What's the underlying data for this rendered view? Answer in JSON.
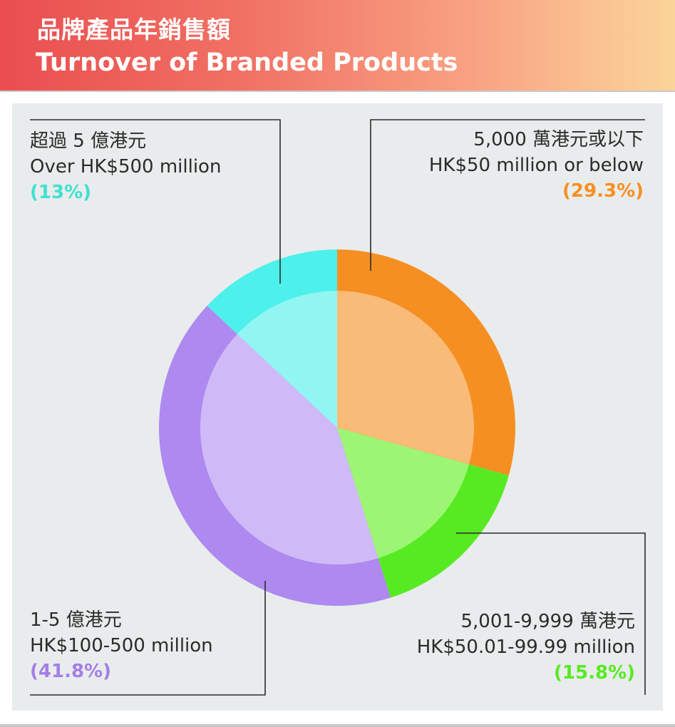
{
  "header": {
    "title_zh": "品牌產品年銷售額",
    "title_en": "Turnover of Branded Products"
  },
  "chart_data": {
    "type": "pie",
    "title": "品牌產品年銷售額 Turnover of Branded Products",
    "slices": [
      {
        "label_zh": "5,000 萬港元或以下",
        "label_en": "HK$50 million or below",
        "pct_text": "(29.3%)",
        "value": 29.3,
        "outer_color": "#f68f22",
        "inner_color": "#f8bb78",
        "text_color": "#f68f22"
      },
      {
        "label_zh": "5,001-9,999 萬港元",
        "label_en": "HK$50.01-99.99 million",
        "pct_text": "(15.8%)",
        "value": 15.8,
        "outer_color": "#57ea23",
        "inner_color": "#9df673",
        "text_color": "#57ea23"
      },
      {
        "label_zh": "1-5 億港元",
        "label_en": "HK$100-500 million",
        "pct_text": "(41.8%)",
        "value": 41.8,
        "outer_color": "#ae89f0",
        "inner_color": "#cfbaf7",
        "text_color": "#a47ee6"
      },
      {
        "label_zh": "超過 5 億港元",
        "label_en": "Over HK$500 million",
        "pct_text": "(13%)",
        "value": 13.0,
        "outer_color": "#4ef0eb",
        "inner_color": "#91f6f2",
        "text_color": "#3fe0d0"
      }
    ]
  }
}
